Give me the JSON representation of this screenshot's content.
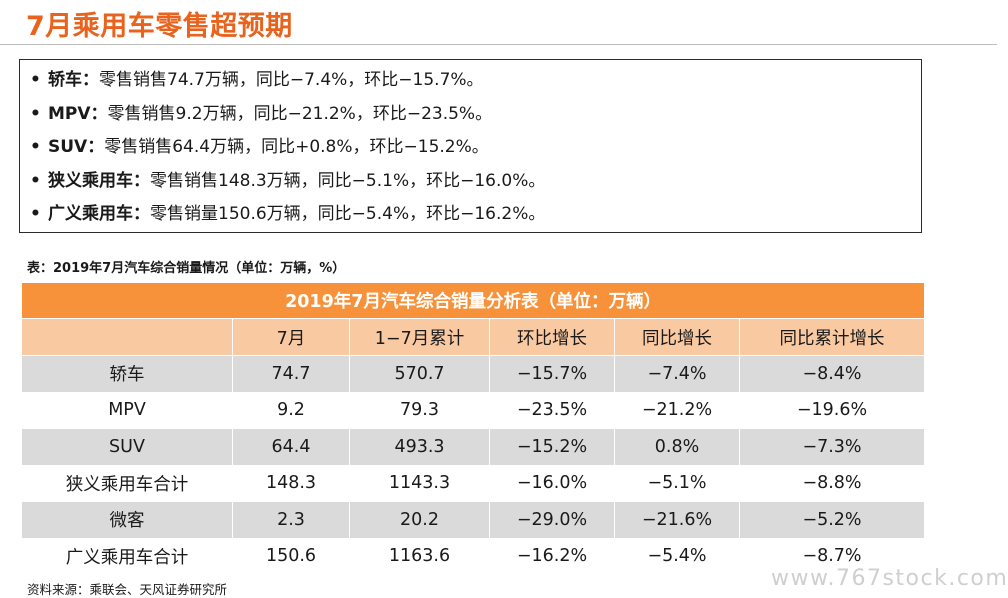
{
  "title": "7月乘用车零售超预期",
  "summary": [
    {
      "bullet": "•",
      "name": "轿车：",
      "text": "零售销售74.7万辆，同比−7.4%，环比−15.7%。"
    },
    {
      "bullet": "•",
      "name": "MPV：",
      "text": "零售销售9.2万辆，同比−21.2%，环比−23.5%。"
    },
    {
      "bullet": "•",
      "name": "SUV：",
      "text": "零售销售64.4万辆，同比+0.8%，环比−15.2%。"
    },
    {
      "bullet": "•",
      "name": "狭义乘用车：",
      "text": "零售销售148.3万辆，同比−5.1%，环比−16.0%。"
    },
    {
      "bullet": "•",
      "name": "广义乘用车：",
      "text": "零售销量150.6万辆，同比−5.4%，环比−16.2%。"
    }
  ],
  "table_caption": "表：2019年7月汽车综合销量情况（单位：万辆，%）",
  "table": {
    "banner": "2019年7月汽车综合销量分析表（单位：万辆）",
    "headers": [
      "",
      "7月",
      "1−7月累计",
      "环比增长",
      "同比增长",
      "同比累计增长"
    ],
    "rows": [
      [
        "轿车",
        "74.7",
        "570.7",
        "−15.7%",
        "−7.4%",
        "−8.4%"
      ],
      [
        "MPV",
        "9.2",
        "79.3",
        "−23.5%",
        "−21.2%",
        "−19.6%"
      ],
      [
        "SUV",
        "64.4",
        "493.3",
        "−15.2%",
        "0.8%",
        "−7.3%"
      ],
      [
        "狭义乘用车合计",
        "148.3",
        "1143.3",
        "−16.0%",
        "−5.1%",
        "−8.8%"
      ],
      [
        "微客",
        "2.3",
        "20.2",
        "−29.0%",
        "−21.6%",
        "−5.2%"
      ],
      [
        "广义乘用车合计",
        "150.6",
        "1163.6",
        "−16.2%",
        "−5.4%",
        "−8.7%"
      ]
    ]
  },
  "source": "资料来源：乘联会、天风证券研究所",
  "watermark": "www.767stock.com",
  "colors": {
    "title": "#e8631e",
    "banner_bg": "#f7923a",
    "header_bg": "#f9c9a1",
    "row_alt_bg": "#dadada"
  }
}
